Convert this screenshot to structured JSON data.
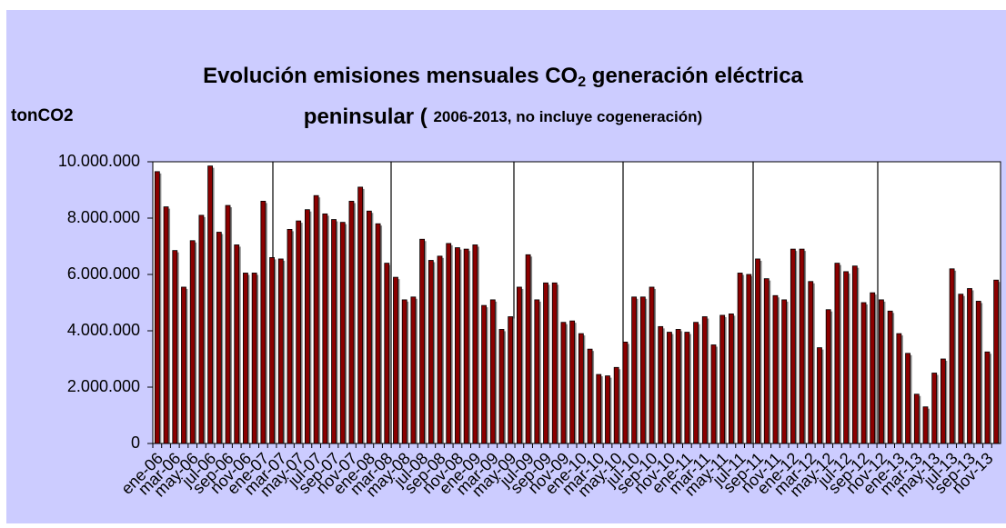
{
  "chart_data": {
    "type": "bar",
    "title": {
      "main": "Evolución emisiones mensuales CO",
      "subscript": "2",
      "rest": " generación eléctrica",
      "line2": "peninsular ( ",
      "note": "2006-2013, no incluye cogeneración)"
    },
    "ylabel": "tonCO2",
    "categories": [
      "ene-06",
      null,
      "mar-06",
      null,
      "may-06",
      null,
      "jul-06",
      null,
      "sep-06",
      null,
      "nov-06",
      null,
      "ene-07",
      null,
      "mar-07",
      null,
      "may-07",
      null,
      "jul-07",
      null,
      "sep-07",
      null,
      "nov-07",
      null,
      "ene-08",
      null,
      "mar-08",
      null,
      "may-08",
      null,
      "jul-08",
      null,
      "sep-08",
      null,
      "nov-08",
      null,
      "ene-09",
      null,
      "mar-09",
      null,
      "may-09",
      null,
      "jul-09",
      null,
      "sep-09",
      null,
      "nov-09",
      null,
      "ene-10",
      null,
      "mar-10",
      null,
      "may-10",
      null,
      "jul-10",
      null,
      "sep-10",
      null,
      "nov-10",
      null,
      "ene-11",
      null,
      "mar-11",
      null,
      "may-11",
      null,
      "jul-11",
      null,
      "sep-11",
      null,
      "nov-11",
      null,
      "ene-12",
      null,
      "mar-12",
      null,
      "may-12",
      null,
      "jul-12",
      null,
      "sep-12",
      null,
      "nov-12",
      null,
      "ene-13",
      null,
      "mar-13",
      null,
      "may-13",
      null,
      "jul-13",
      null,
      "sep-13",
      null,
      "nov-13",
      null
    ],
    "values": [
      9650000,
      8400000,
      6850000,
      5550000,
      7200000,
      8100000,
      9850000,
      7500000,
      8450000,
      7050000,
      6050000,
      6050000,
      8600000,
      6600000,
      6550000,
      7600000,
      7900000,
      8300000,
      8800000,
      8150000,
      7950000,
      7850000,
      8600000,
      9100000,
      8250000,
      7800000,
      6400000,
      5900000,
      5100000,
      5200000,
      7250000,
      6500000,
      6650000,
      7100000,
      6950000,
      6900000,
      7050000,
      4900000,
      5100000,
      4050000,
      4500000,
      5550000,
      6700000,
      5100000,
      5700000,
      5700000,
      4300000,
      4350000,
      3900000,
      3350000,
      2450000,
      2400000,
      2700000,
      3600000,
      5200000,
      5200000,
      5550000,
      4150000,
      3950000,
      4050000,
      3950000,
      4300000,
      4500000,
      3500000,
      4550000,
      4600000,
      6050000,
      6000000,
      6550000,
      5850000,
      5250000,
      5100000,
      6900000,
      6900000,
      5750000,
      3400000,
      4750000,
      6400000,
      6100000,
      6300000,
      5000000,
      5350000,
      5100000,
      4700000,
      3900000,
      3200000,
      1750000,
      1300000,
      2500000,
      3000000,
      6200000,
      5300000,
      5500000,
      5050000,
      3250000,
      5800000
    ],
    "color": "#8b0000",
    "ylim": [
      0,
      10000000
    ],
    "yticks": [
      0,
      {
        "value": 2000000,
        "label": "2.000.000"
      },
      {
        "value": 4000000,
        "label": "4.000.000"
      },
      {
        "value": 6000000,
        "label": "6.000.000"
      },
      {
        "value": 8000000,
        "label": "8.000.000"
      },
      {
        "value": 10000000,
        "label": "10.000.000"
      }
    ]
  }
}
